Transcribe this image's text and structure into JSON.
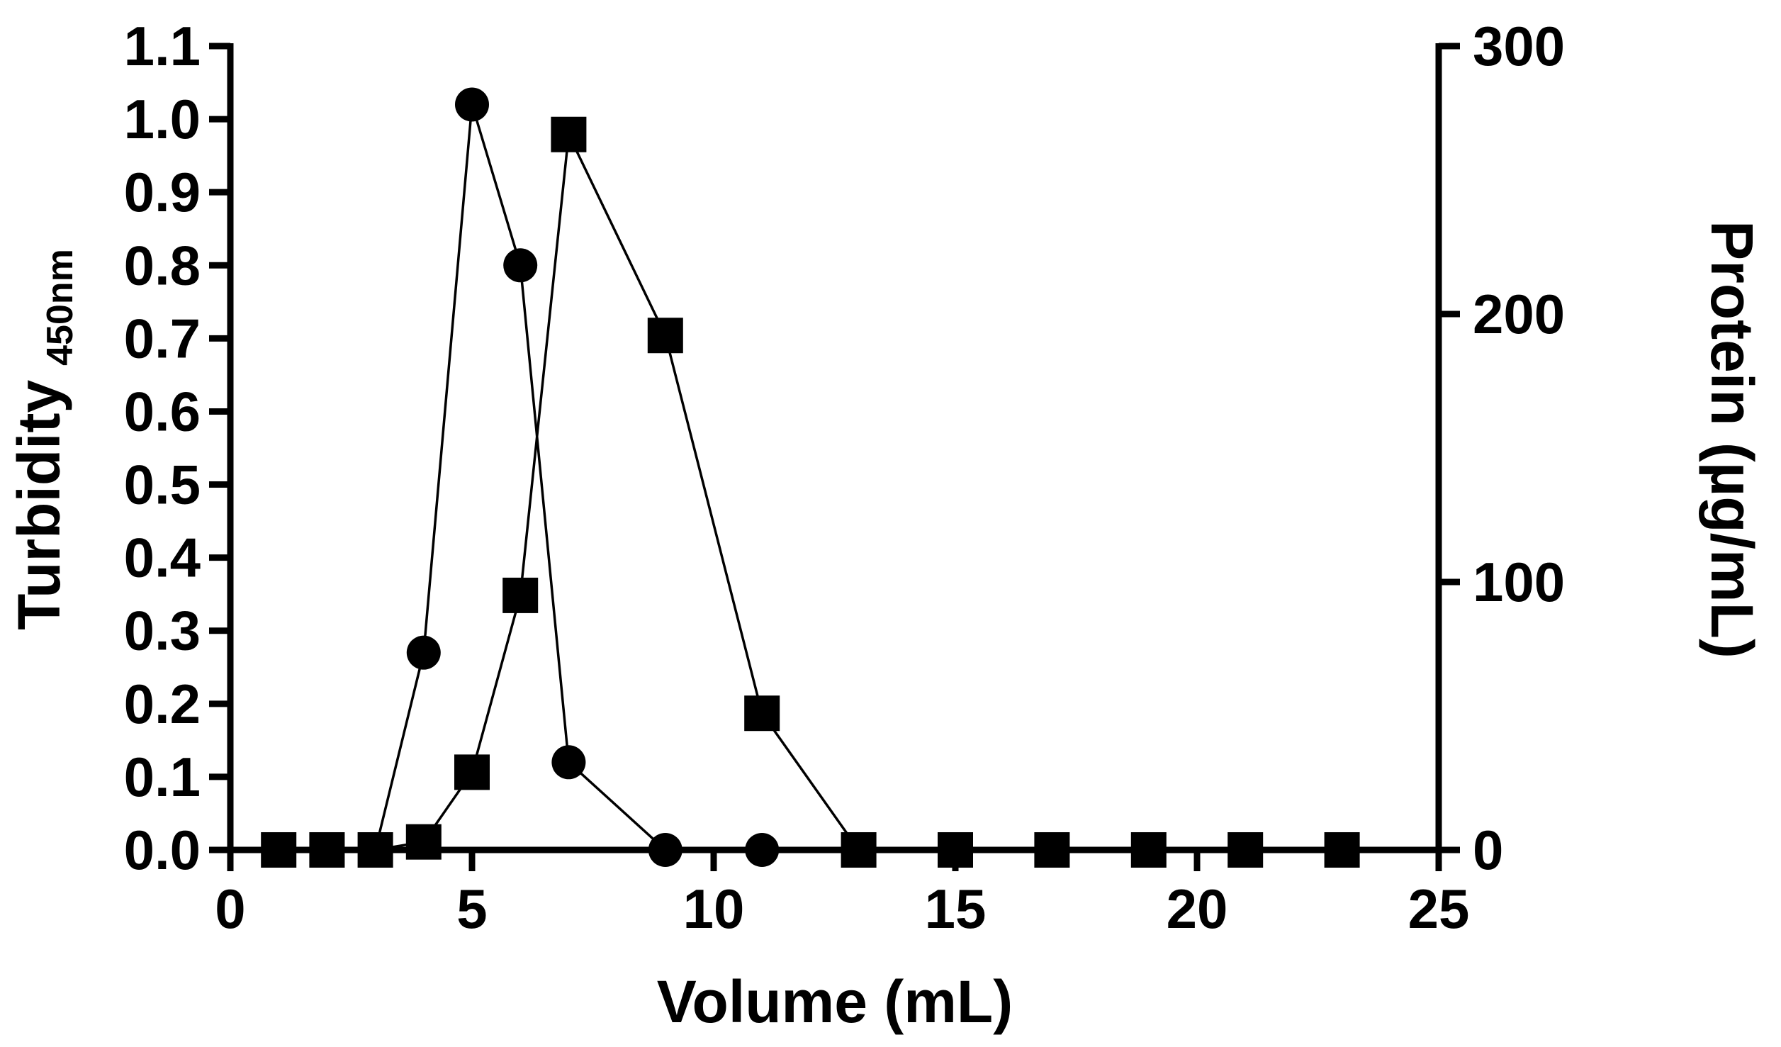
{
  "chart_data": {
    "type": "line",
    "title": "",
    "xlabel": "Volume (mL)",
    "ylabel": "Turbidity",
    "ylabel_subscript": "450nm",
    "y2label": "Protein (µg/mL)",
    "xlim": [
      0,
      25
    ],
    "ylim": [
      0,
      1.1
    ],
    "y2lim": [
      0,
      300
    ],
    "xticks": [
      "0",
      "5",
      "10",
      "15",
      "20",
      "25"
    ],
    "yticks": [
      "0.0",
      "0.1",
      "0.2",
      "0.3",
      "0.4",
      "0.5",
      "0.6",
      "0.7",
      "0.8",
      "0.9",
      "1.0",
      "1.1"
    ],
    "y2ticks": [
      "0",
      "100",
      "200",
      "300"
    ],
    "grid": false,
    "legend": "none",
    "series": [
      {
        "marker": "circle",
        "axis": "left",
        "color": "#000000",
        "x": [
          1,
          2,
          3,
          4,
          5,
          6,
          7,
          9,
          11
        ],
        "y": [
          0.0,
          0.0,
          0.0,
          0.27,
          1.02,
          0.8,
          0.12,
          0.0,
          0.0
        ]
      },
      {
        "marker": "square",
        "axis": "right",
        "color": "#000000",
        "x": [
          1,
          2,
          3,
          4,
          5,
          6,
          7,
          9,
          11,
          13,
          15,
          17,
          19,
          21,
          23
        ],
        "y": [
          0,
          0,
          0,
          3,
          29,
          95,
          267,
          192,
          51,
          0,
          0,
          0,
          0,
          0,
          0
        ]
      }
    ]
  }
}
